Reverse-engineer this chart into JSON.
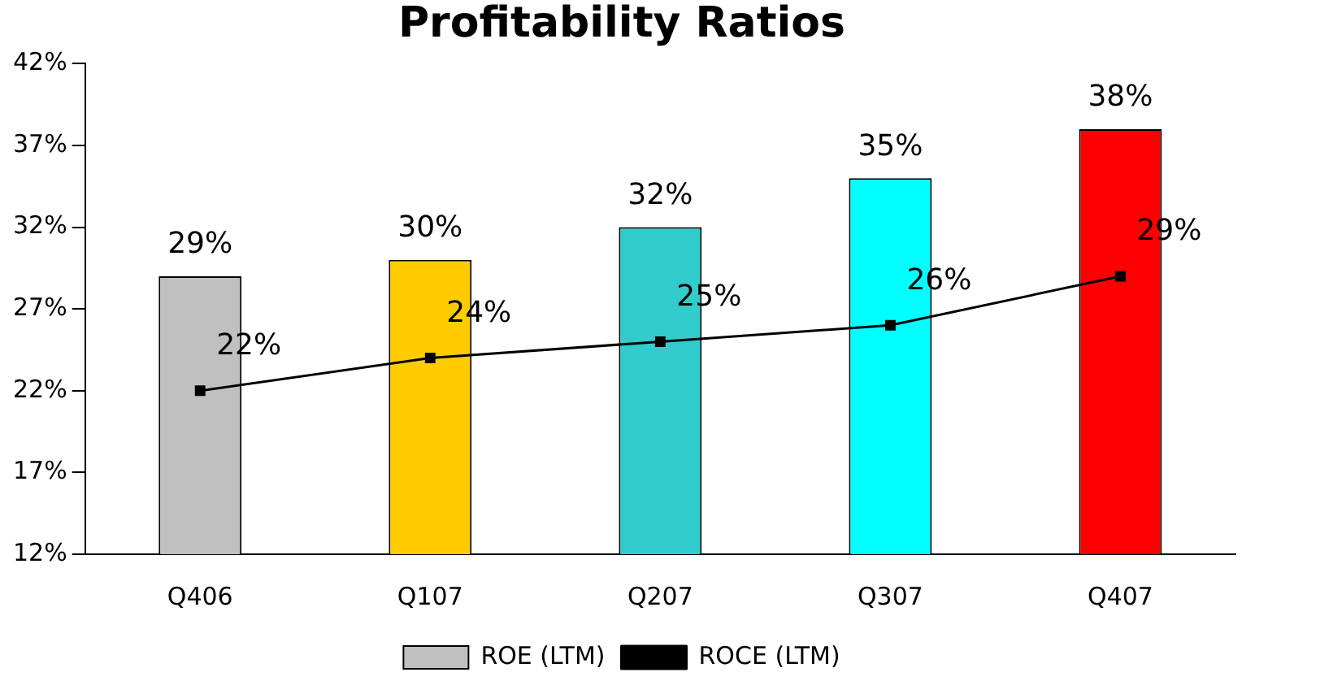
{
  "chart_data": {
    "type": "bar",
    "title": "Profitability Ratios",
    "categories": [
      "Q406",
      "Q107",
      "Q207",
      "Q307",
      "Q407"
    ],
    "series": [
      {
        "name": "ROE (LTM)",
        "colors": [
          "#c0c0c0",
          "#ffcc00",
          "#33cccc",
          "#00ffff",
          "#ff0000"
        ],
        "values": [
          29,
          30,
          32,
          35,
          38
        ],
        "value_labels": [
          "29%",
          "30%",
          "32%",
          "35%",
          "38%"
        ]
      },
      {
        "name": "ROCE (LTM)",
        "type": "line",
        "color": "#000000",
        "marker": "square",
        "values": [
          22,
          24,
          25,
          26,
          29
        ],
        "value_labels": [
          "22%",
          "24%",
          "25%",
          "26%",
          "29%"
        ]
      }
    ],
    "ylim": [
      12,
      42
    ],
    "yticks": [
      {
        "value": 12,
        "label": "12%"
      },
      {
        "value": 17,
        "label": "17%"
      },
      {
        "value": 22,
        "label": "22%"
      },
      {
        "value": 27,
        "label": "27%"
      },
      {
        "value": 32,
        "label": "32%"
      },
      {
        "value": 37,
        "label": "37%"
      },
      {
        "value": 42,
        "label": "42%"
      }
    ],
    "grid": false,
    "legend": "bottom"
  }
}
